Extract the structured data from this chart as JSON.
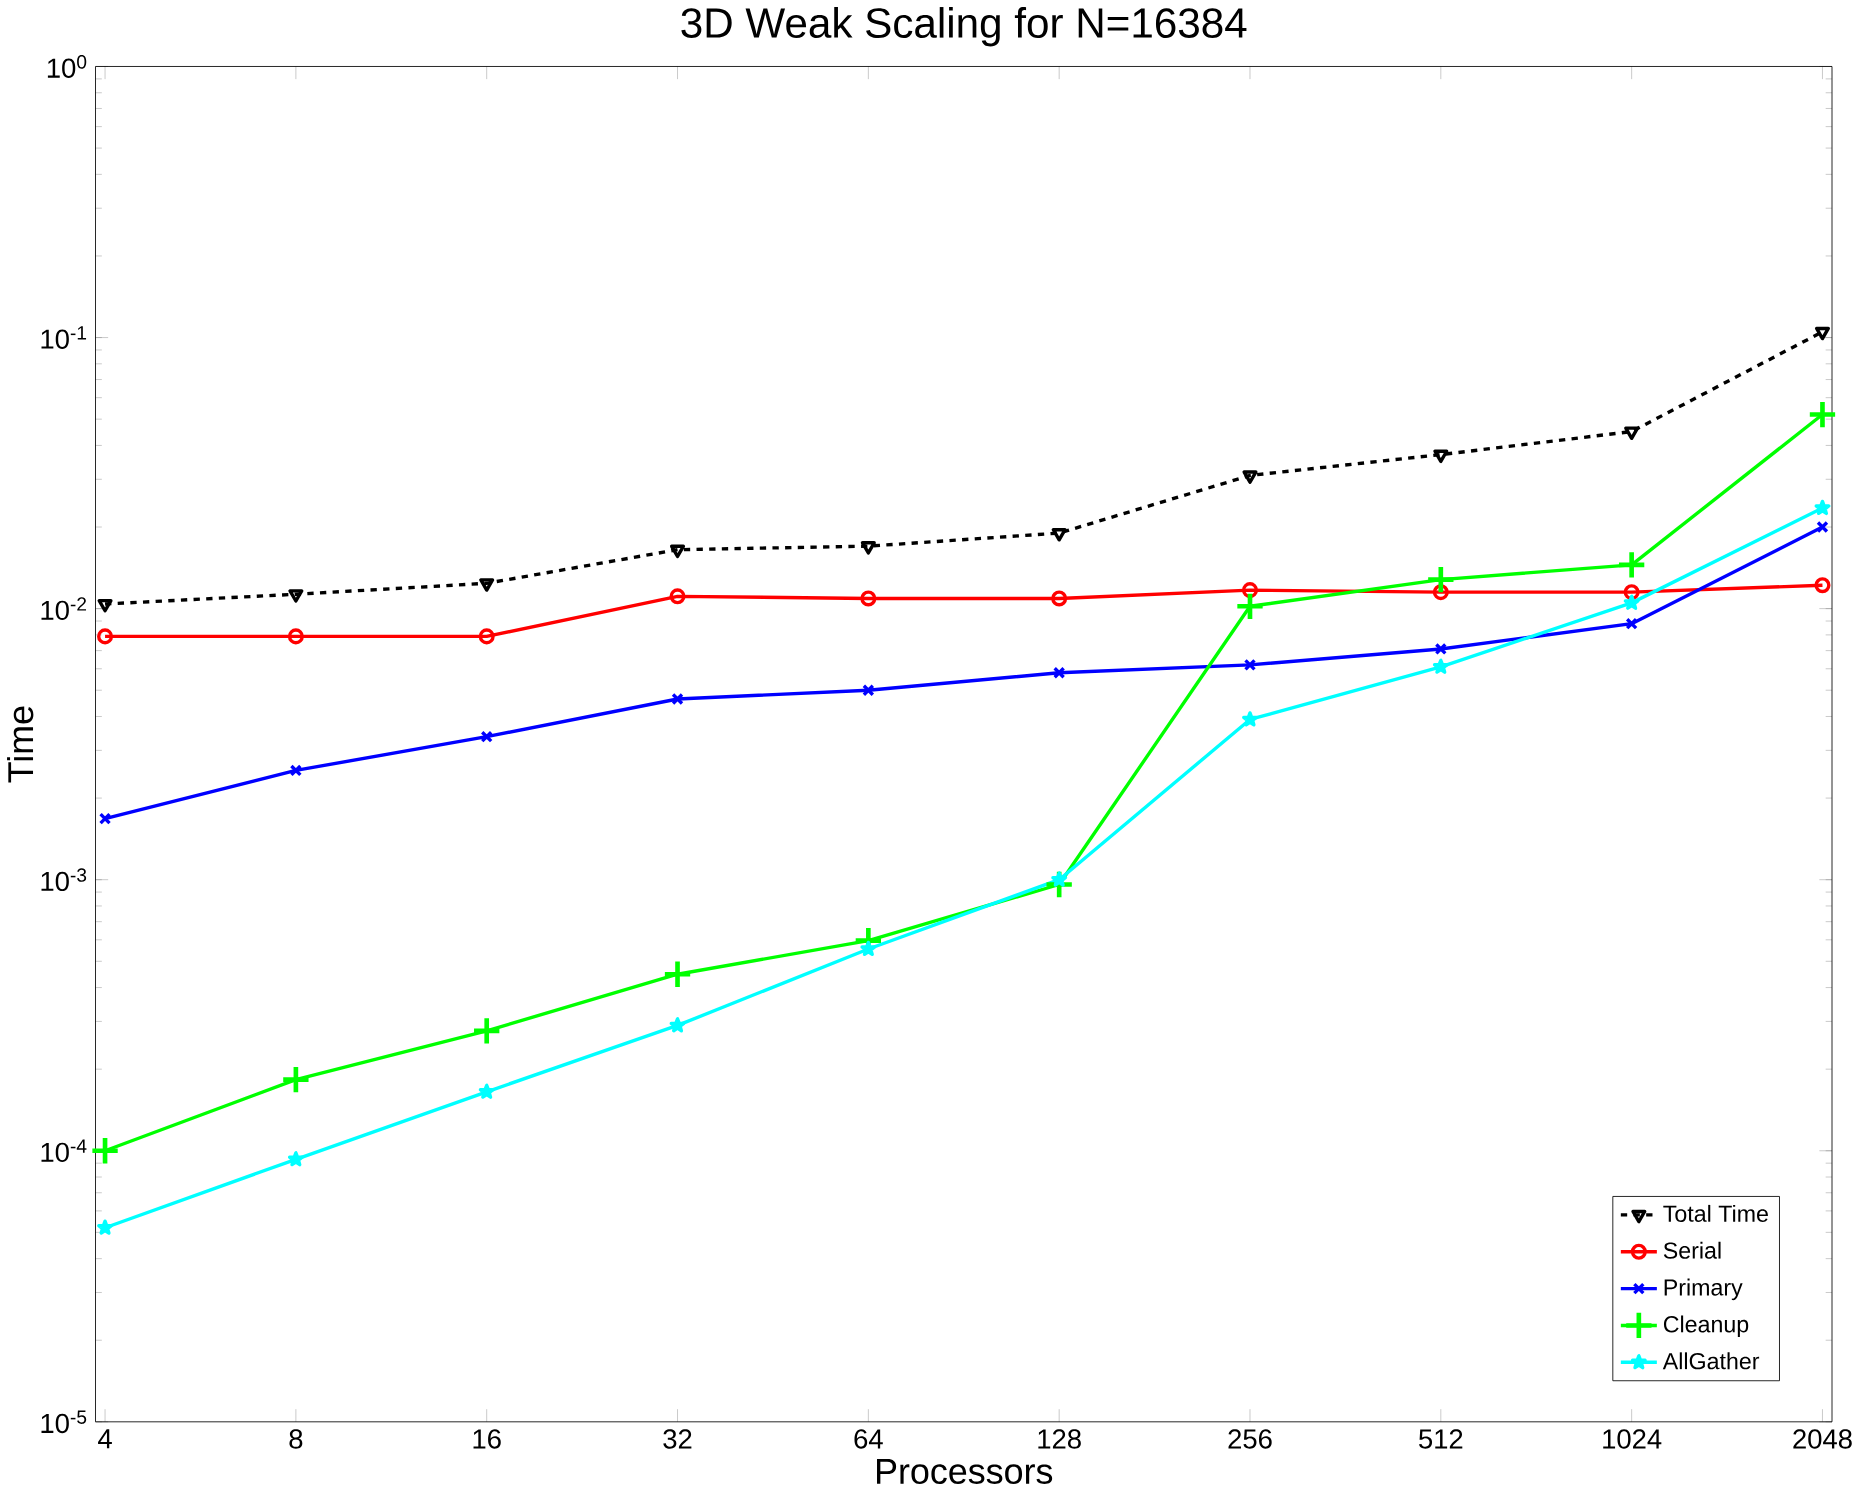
{
  "chart_data": {
    "type": "line",
    "title": "3D Weak Scaling for N=16384",
    "xlabel": "Processors",
    "ylabel": "Time",
    "categories": [
      "4",
      "8",
      "16",
      "32",
      "64",
      "128",
      "256",
      "512",
      "1024",
      "2048"
    ],
    "log": "y",
    "ylim": [
      1e-05,
      1
    ],
    "yticks": [
      {
        "value": 1e-05,
        "label": "10$^{-5}$"
      },
      {
        "value": 0.0001,
        "label": "10$^{-4}$"
      },
      {
        "value": 0.001,
        "label": "10$^{-3}$"
      },
      {
        "value": 0.01,
        "label": "10$^{-2}$"
      },
      {
        "value": 0.1,
        "label": "10$^{-1}$"
      },
      {
        "value": 1,
        "label": "10$^{0}$"
      }
    ],
    "legend": "bottom right",
    "series": [
      {
        "name": "Total Time",
        "color": "#000000",
        "marker": "triangle",
        "line_style": "dashed",
        "values": [
          0.0104,
          0.0113,
          0.0124,
          0.0165,
          0.017,
          0.019,
          0.031,
          0.037,
          0.045,
          0.105
        ]
      },
      {
        "name": "Serial",
        "color": "#ff0000",
        "marker": "circle",
        "line_style": "solid",
        "values": [
          0.0079,
          0.0079,
          0.0079,
          0.0111,
          0.0109,
          0.0109,
          0.0117,
          0.0115,
          0.0115,
          0.0122
        ]
      },
      {
        "name": "Primary",
        "color": "#0000ff",
        "marker": "cross",
        "line_style": "solid",
        "values": [
          0.00168,
          0.00253,
          0.00337,
          0.00464,
          0.005,
          0.0058,
          0.0062,
          0.0071,
          0.0088,
          0.02
        ]
      },
      {
        "name": "Cleanup",
        "color": "#00ff00",
        "marker": "plus",
        "line_style": "solid",
        "values": [
          0.0001,
          0.000183,
          0.000277,
          0.000448,
          0.000596,
          0.00096,
          0.0102,
          0.0128,
          0.0145,
          0.052
        ]
      },
      {
        "name": "AllGather",
        "color": "#00ffff",
        "marker": "star",
        "line_style": "solid",
        "values": [
          5.2e-05,
          9.3e-05,
          0.000165,
          0.00029,
          0.000555,
          0.001,
          0.0039,
          0.0061,
          0.0105,
          0.0235
        ]
      }
    ]
  }
}
